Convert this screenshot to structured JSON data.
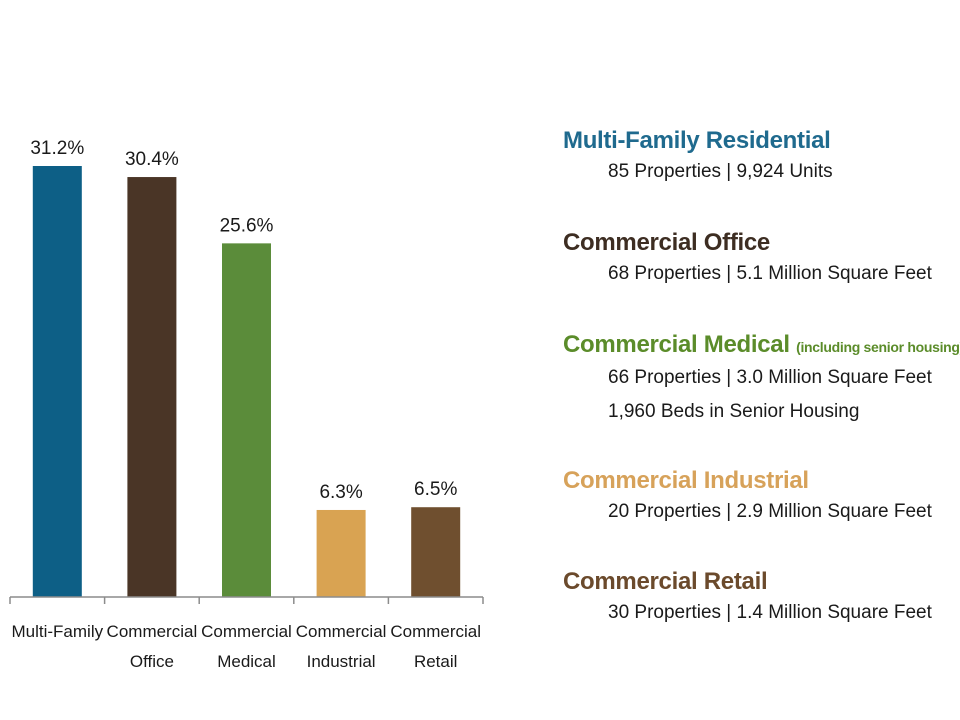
{
  "chart_data": {
    "type": "bar",
    "categories": [
      [
        "Multi-Family"
      ],
      [
        "Commercial",
        "Office"
      ],
      [
        "Commercial",
        "Medical"
      ],
      [
        "Commercial",
        "Industrial"
      ],
      [
        "Commercial",
        "Retail"
      ]
    ],
    "values": [
      31.2,
      30.4,
      25.6,
      6.3,
      6.5
    ],
    "value_labels": [
      "31.2%",
      "30.4%",
      "25.6%",
      "6.3%",
      "6.5%"
    ],
    "colors": [
      "#0d5f86",
      "#4a3526",
      "#5b8c3a",
      "#d9a352",
      "#6f4f2f"
    ],
    "title": "",
    "xlabel": "",
    "ylabel": "",
    "ylim": [
      0,
      31.2
    ],
    "grid": false
  },
  "legend": {
    "entries": [
      {
        "title": "Multi-Family Residential",
        "note": "",
        "color": "#1f6a8e",
        "details": [
          "85 Properties | 9,924 Units"
        ]
      },
      {
        "title": "Commercial Office",
        "note": "",
        "color": "#3d2d22",
        "details": [
          "68 Properties | 5.1 Million Square Feet"
        ]
      },
      {
        "title": "Commercial Medical",
        "note": "(including senior housing)",
        "color": "#5b8c2a",
        "details": [
          "66 Properties | 3.0 Million Square Feet",
          "1,960 Beds in Senior Housing"
        ]
      },
      {
        "title": "Commercial Industrial",
        "note": "",
        "color": "#d7a25a",
        "details": [
          "20 Properties | 2.9 Million Square Feet"
        ]
      },
      {
        "title": "Commercial Retail",
        "note": "",
        "color": "#6b4a2c",
        "details": [
          "30 Properties | 1.4 Million Square Feet"
        ]
      }
    ]
  }
}
